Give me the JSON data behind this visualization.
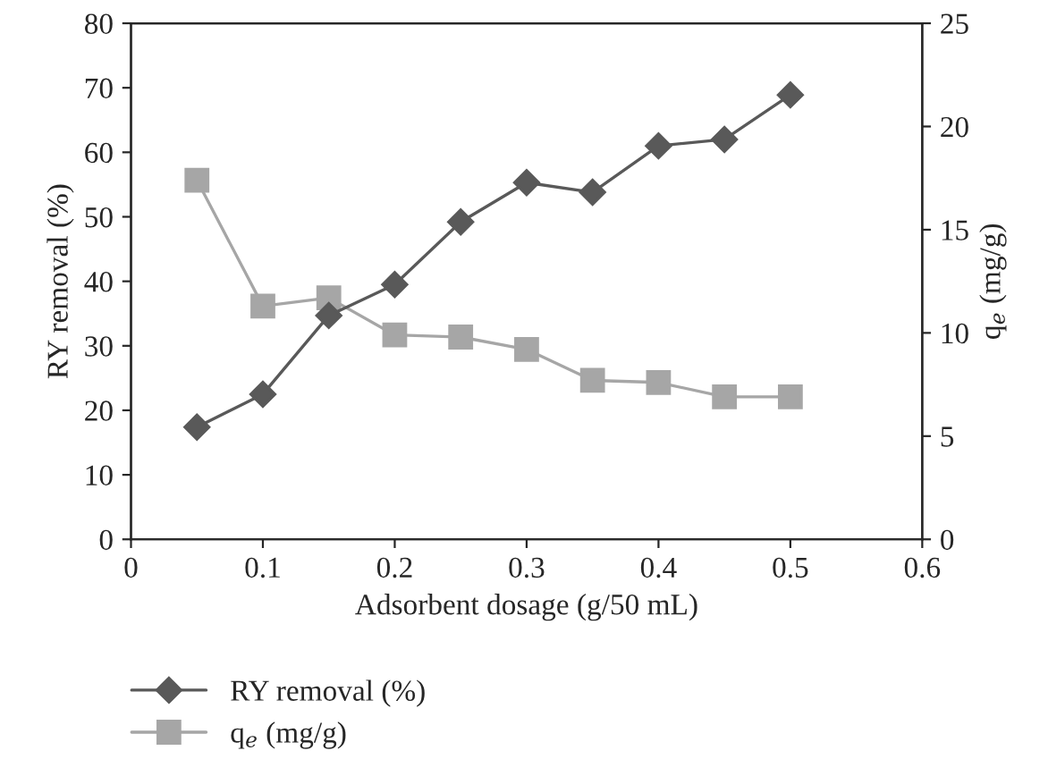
{
  "chart_data": {
    "type": "line",
    "xlabel": "Adsorbent dosage (g/50 mL)",
    "ylabel": "RY removal (%)",
    "y2label": "q$_{e}$ (mg/g)",
    "x": [
      0.05,
      0.1,
      0.15,
      0.2,
      0.25,
      0.3,
      0.35,
      0.4,
      0.45,
      0.5
    ],
    "xlim": [
      0,
      0.6
    ],
    "xticks": [
      {
        "value": 0,
        "label": "0"
      },
      0.1,
      0.2,
      0.3,
      0.4,
      0.5,
      0.6
    ],
    "ylim": [
      0,
      80
    ],
    "yticks": [
      0,
      10,
      20,
      30,
      40,
      50,
      60,
      70,
      80
    ],
    "y2lim": [
      0,
      25
    ],
    "y2ticks": [
      0,
      5,
      10,
      15,
      20,
      25
    ],
    "grid": false,
    "legend": "bottom",
    "line_style": "solid",
    "series": [
      {
        "name": "RY removal (%)",
        "color": "#595959",
        "marker": "diamond",
        "values": [
          17.4,
          22.5,
          34.7,
          39.5,
          49.2,
          55.3,
          53.8,
          61.0,
          62.0,
          68.9
        ]
      },
      {
        "name": "q$_{e}$ (mg/g)",
        "color": "#a6a6a6",
        "marker": "square",
        "axis": "y2",
        "values": [
          17.4,
          11.3,
          11.7,
          9.9,
          9.8,
          9.2,
          7.7,
          7.6,
          6.9,
          6.9
        ]
      }
    ]
  }
}
